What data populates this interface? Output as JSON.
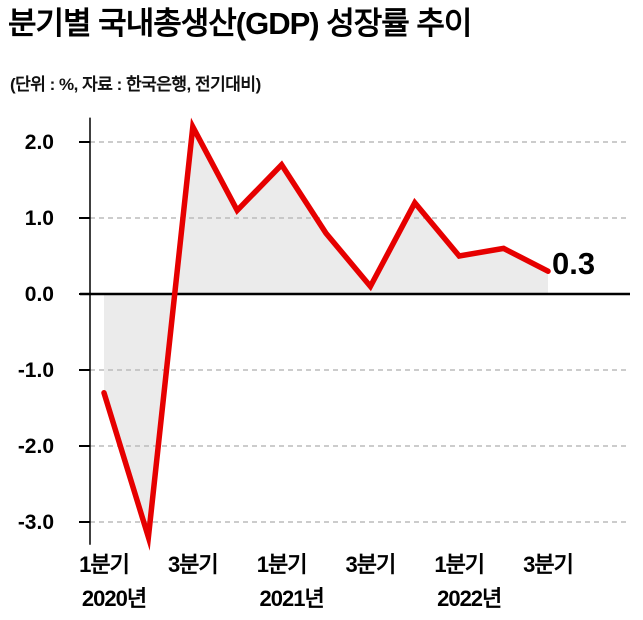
{
  "page": {
    "title": "분기별 국내총생산(GDP) 성장률 추이",
    "subtitle": "(단위 : %, 자료 : 한국은행, 전기대비)"
  },
  "chart_data": {
    "type": "line",
    "title": "분기별 국내총생산(GDP) 성장률 추이",
    "unit_note": "(단위 : %, 자료 : 한국은행, 전기대비)",
    "unit": "%",
    "source": "한국은행",
    "basis": "전기대비",
    "categories": [
      "2020 1분기",
      "2020 2분기",
      "2020 3분기",
      "2020 4분기",
      "2021 1분기",
      "2021 2분기",
      "2021 3분기",
      "2021 4분기",
      "2022 1분기",
      "2022 2분기",
      "2022 3분기"
    ],
    "values": [
      -1.3,
      -3.2,
      2.2,
      1.1,
      1.7,
      0.8,
      0.1,
      1.2,
      0.5,
      0.6,
      0.3
    ],
    "ylim": [
      -3.3,
      2.4
    ],
    "yticks": [
      2.0,
      1.0,
      0.0,
      -1.0,
      -2.0,
      -3.0
    ],
    "ytick_labels": [
      "2.0",
      "1.0",
      "0.0",
      "-1.0",
      "-2.0",
      "-3.0"
    ],
    "x_axis_ticks": [
      {
        "index": 0,
        "label": "1분기",
        "year": "2020년"
      },
      {
        "index": 2,
        "label": "3분기",
        "year": ""
      },
      {
        "index": 4,
        "label": "1분기",
        "year": "2021년"
      },
      {
        "index": 6,
        "label": "3분기",
        "year": ""
      },
      {
        "index": 8,
        "label": "1분기",
        "year": "2022년"
      },
      {
        "index": 10,
        "label": "3분기",
        "year": ""
      }
    ],
    "last_value_label": "0.3",
    "line_color": "#e60000",
    "fill_color": "#ebebeb",
    "zero_line_color": "#000000",
    "grid_color": "#bbbbbb",
    "grid": "dashed horizontal, solid zero line",
    "legend": "none"
  }
}
